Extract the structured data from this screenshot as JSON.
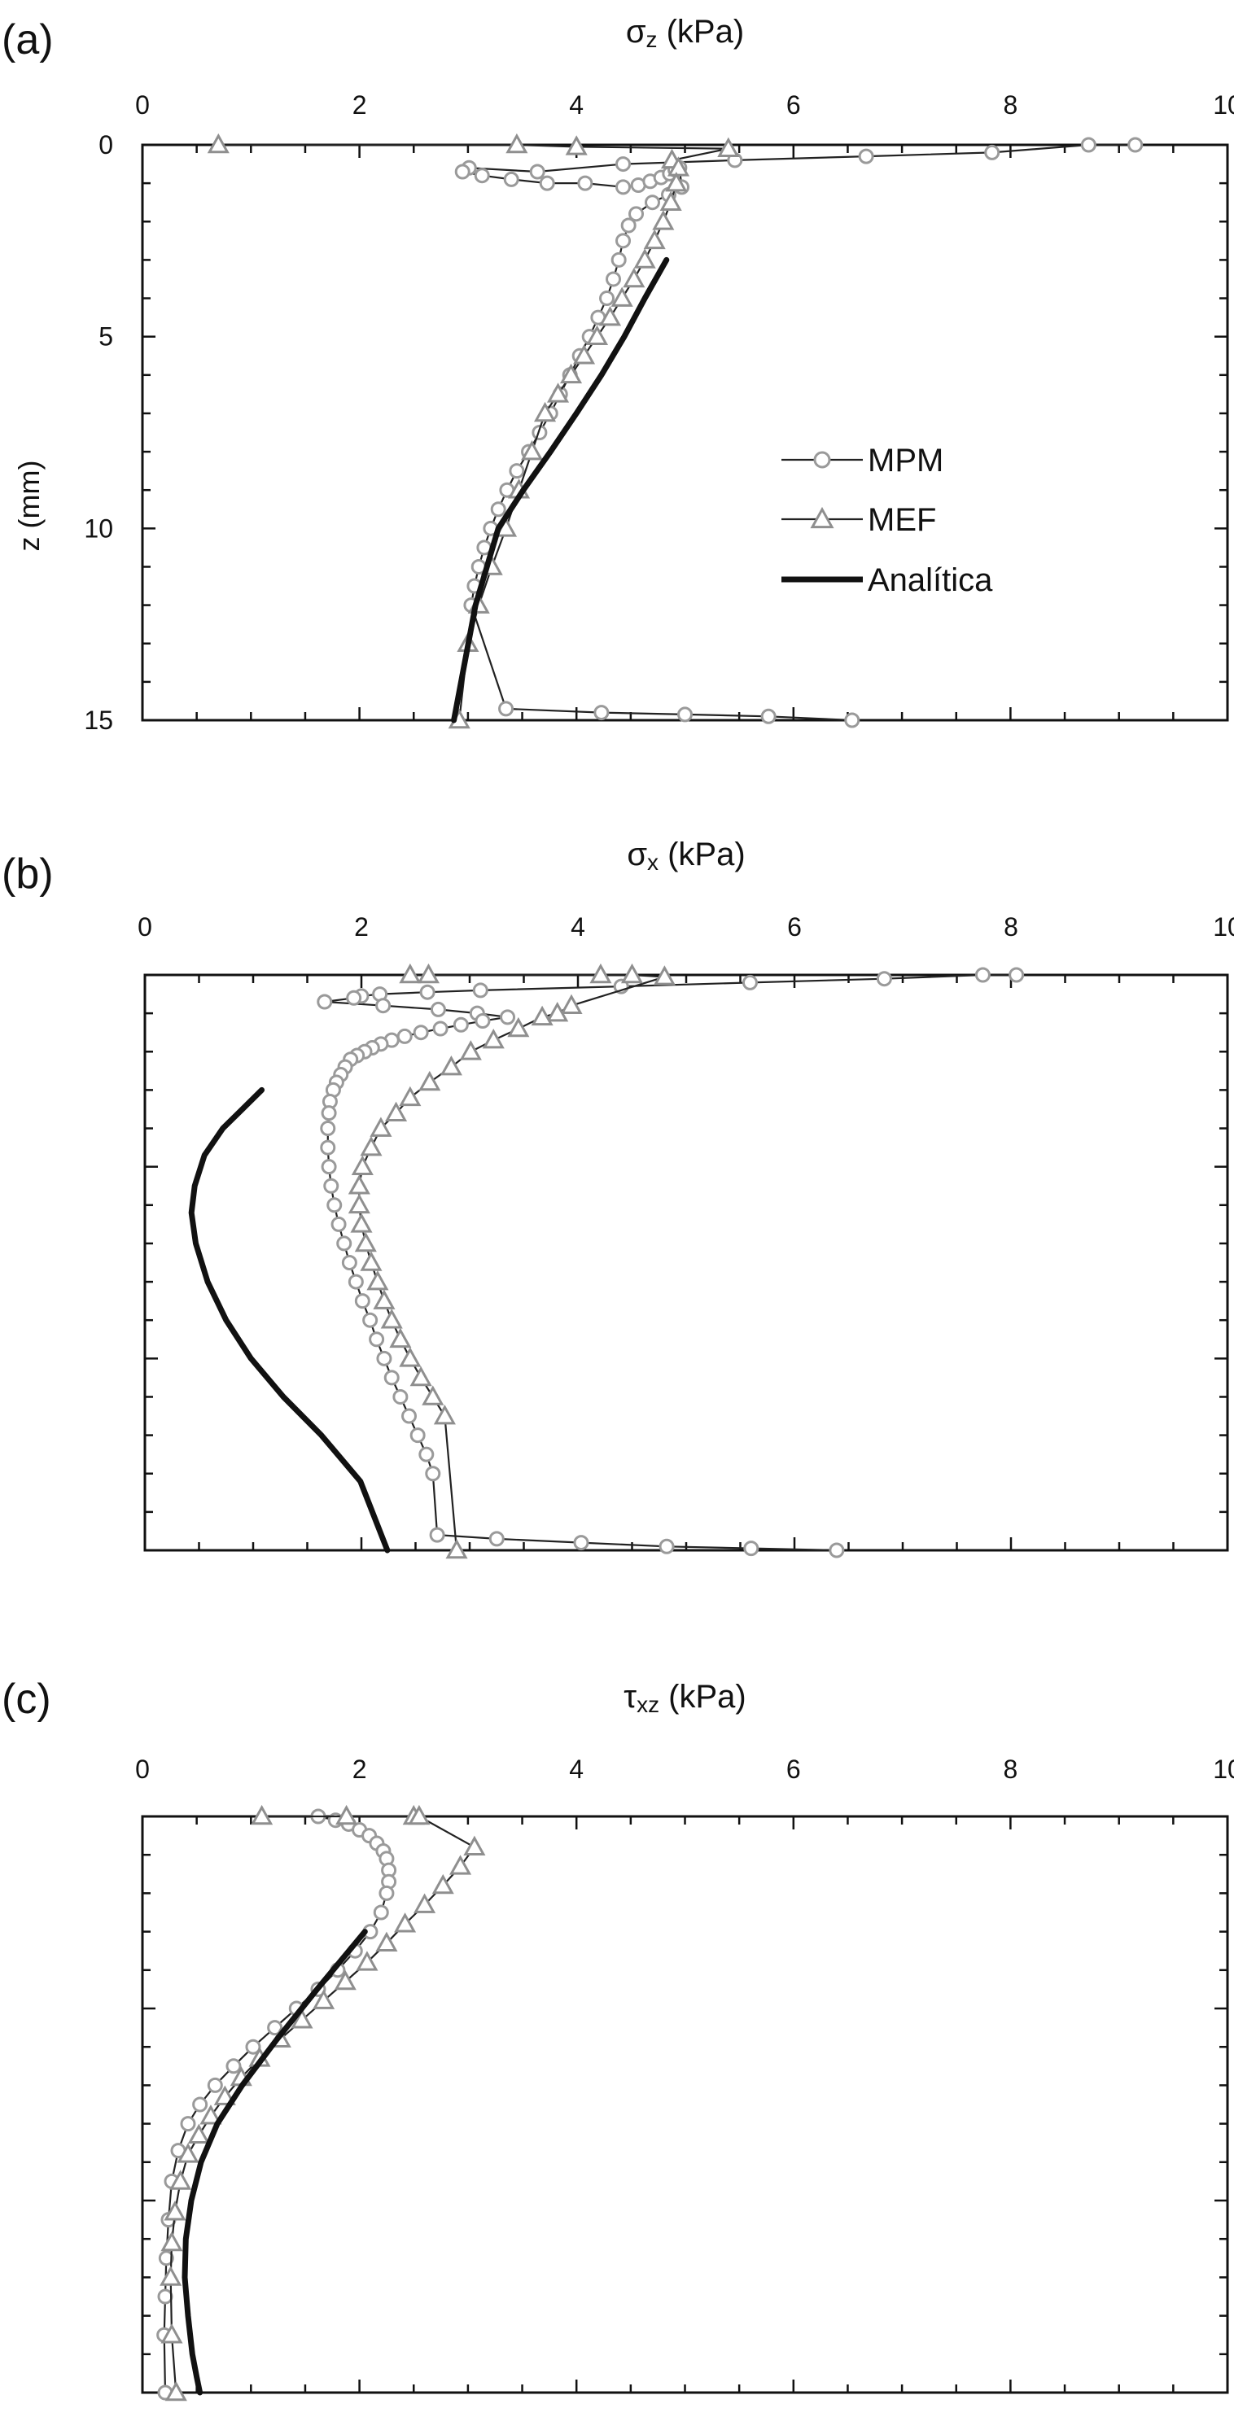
{
  "figure": {
    "series_legend": [
      {
        "name": "MPM",
        "marker": "circle"
      },
      {
        "name": "MEF",
        "marker": "triangle"
      },
      {
        "name": "Analítica",
        "marker": "none"
      }
    ],
    "colors": {
      "mpm": "#9a9a9a",
      "mef": "#8f8f8f",
      "analitica": "#111111",
      "axis": "#111111"
    }
  },
  "chart_data": [
    {
      "type": "line",
      "panel_label": "(a)",
      "xlabel_symbol": "σ",
      "xlabel_sub": "z",
      "xlabel_unit": " (kPa)",
      "ylabel": "z (mm)",
      "xlim": [
        0,
        10
      ],
      "ylim": [
        0,
        15
      ],
      "x_ticks": [
        "0",
        "2",
        "4",
        "6",
        "8",
        "10"
      ],
      "y_ticks": [
        "0",
        "5",
        "10",
        "15"
      ],
      "grid": false,
      "legend": "right",
      "series": [
        {
          "name": "MPM",
          "marker": "circle",
          "x": [
            9.15,
            8.72,
            7.83,
            6.67,
            5.46,
            4.43,
            3.64,
            3.01,
            2.95,
            3.13,
            3.4,
            3.73,
            4.08,
            4.43,
            4.57,
            4.68,
            4.78,
            4.86,
            4.91,
            4.95,
            4.97,
            4.85,
            4.7,
            4.55,
            4.48,
            4.43,
            4.39,
            4.34,
            4.28,
            4.2,
            4.12,
            4.03,
            3.94,
            3.85,
            3.76,
            3.66,
            3.56,
            3.45,
            3.36,
            3.28,
            3.21,
            3.15,
            3.1,
            3.06,
            3.03,
            3.35,
            4.23,
            5.0,
            5.77,
            6.54
          ],
          "y": [
            0.0,
            0.0,
            0.2,
            0.3,
            0.4,
            0.5,
            0.7,
            0.6,
            0.7,
            0.8,
            0.9,
            1.0,
            1.0,
            1.1,
            1.05,
            0.95,
            0.85,
            0.75,
            0.65,
            0.6,
            1.1,
            1.3,
            1.5,
            1.8,
            2.1,
            2.5,
            3.0,
            3.5,
            4.0,
            4.5,
            5.0,
            5.5,
            6.0,
            6.5,
            7.0,
            7.5,
            8.0,
            8.5,
            9.0,
            9.5,
            10.0,
            10.5,
            11.0,
            11.5,
            12.0,
            14.7,
            14.8,
            14.85,
            14.9,
            15.0
          ]
        },
        {
          "name": "MEF",
          "marker": "triangle",
          "x": [
            0.7,
            3.45,
            4.0,
            5.4,
            4.88,
            4.94,
            4.92,
            4.87,
            4.8,
            4.72,
            4.63,
            4.53,
            4.42,
            4.31,
            4.19,
            4.07,
            3.95,
            3.83,
            3.71,
            3.59,
            3.47,
            3.35,
            3.22,
            3.1,
            3.0,
            2.92
          ],
          "y": [
            0.0,
            0.0,
            0.05,
            0.1,
            0.4,
            0.6,
            1.0,
            1.5,
            2.0,
            2.5,
            3.0,
            3.5,
            4.0,
            4.5,
            5.0,
            5.5,
            6.0,
            6.5,
            7.0,
            8.0,
            9.0,
            10.0,
            11.0,
            12.0,
            13.0,
            15.0
          ]
        },
        {
          "name": "Analítica",
          "marker": "none",
          "x": [
            4.83,
            4.63,
            4.44,
            4.23,
            4.0,
            3.76,
            3.51,
            3.28,
            3.07,
            2.87
          ],
          "y": [
            3.0,
            4.0,
            5.0,
            6.0,
            7.0,
            8.0,
            9.0,
            10.0,
            12.0,
            15.0
          ]
        }
      ]
    },
    {
      "type": "line",
      "panel_label": "(b)",
      "xlabel_symbol": "σ",
      "xlabel_sub": "x",
      "xlabel_unit": " (kPa)",
      "ylabel": "",
      "xlim": [
        0,
        10
      ],
      "ylim": [
        0,
        15
      ],
      "x_ticks": [
        "0",
        "2",
        "4",
        "6",
        "8",
        "10"
      ],
      "y_ticks": [],
      "grid": false,
      "legend": "none",
      "series": [
        {
          "name": "MPM",
          "marker": "circle",
          "x": [
            8.05,
            7.74,
            6.83,
            5.59,
            4.4,
            3.1,
            2.61,
            2.17,
            2.0,
            1.93,
            1.66,
            2.2,
            2.71,
            3.07,
            3.35,
            3.12,
            2.92,
            2.73,
            2.55,
            2.4,
            2.28,
            2.18,
            2.1,
            2.03,
            1.96,
            1.9,
            1.85,
            1.81,
            1.77,
            1.74,
            1.71,
            1.7,
            1.69,
            1.69,
            1.7,
            1.72,
            1.75,
            1.79,
            1.84,
            1.89,
            1.95,
            2.01,
            2.08,
            2.14,
            2.21,
            2.28,
            2.36,
            2.44,
            2.52,
            2.6,
            2.66,
            2.7,
            3.25,
            4.03,
            4.82,
            5.6,
            6.39
          ],
          "y": [
            0.0,
            0.0,
            0.1,
            0.2,
            0.3,
            0.4,
            0.45,
            0.5,
            0.55,
            0.6,
            0.7,
            0.8,
            0.9,
            1.0,
            1.1,
            1.2,
            1.3,
            1.4,
            1.5,
            1.6,
            1.7,
            1.8,
            1.9,
            2.0,
            2.1,
            2.2,
            2.4,
            2.6,
            2.8,
            3.0,
            3.3,
            3.6,
            4.0,
            4.5,
            5.0,
            5.5,
            6.0,
            6.5,
            7.0,
            7.5,
            8.0,
            8.5,
            9.0,
            9.5,
            10.0,
            10.5,
            11.0,
            11.5,
            12.0,
            12.5,
            13.0,
            14.6,
            14.7,
            14.8,
            14.9,
            14.95,
            15.0
          ]
        },
        {
          "name": "MEF",
          "marker": "triangle",
          "x": [
            2.45,
            2.62,
            4.21,
            4.5,
            4.8,
            3.94,
            3.81,
            3.67,
            3.45,
            3.22,
            3.01,
            2.83,
            2.63,
            2.45,
            2.32,
            2.18,
            2.09,
            2.01,
            1.98,
            1.98,
            2.0,
            2.04,
            2.09,
            2.15,
            2.21,
            2.28,
            2.36,
            2.45,
            2.55,
            2.66,
            2.77,
            2.88
          ],
          "y": [
            0.0,
            0.0,
            0.0,
            0.0,
            0.05,
            0.8,
            1.0,
            1.1,
            1.4,
            1.7,
            2.0,
            2.4,
            2.8,
            3.2,
            3.6,
            4.0,
            4.5,
            5.0,
            5.5,
            6.0,
            6.5,
            7.0,
            7.5,
            8.0,
            8.5,
            9.0,
            9.5,
            10.0,
            10.5,
            11.0,
            11.5,
            15.0
          ]
        },
        {
          "name": "Analítica",
          "marker": "none",
          "x": [
            1.08,
            0.9,
            0.72,
            0.55,
            0.46,
            0.43,
            0.47,
            0.58,
            0.75,
            0.98,
            1.28,
            1.63,
            1.99,
            2.24
          ],
          "y": [
            3.0,
            3.5,
            4.0,
            4.7,
            5.5,
            6.2,
            7.0,
            8.0,
            9.0,
            10.0,
            11.0,
            12.0,
            13.2,
            15.0
          ]
        }
      ]
    },
    {
      "type": "line",
      "panel_label": "(c)",
      "xlabel_symbol": "τ",
      "xlabel_sub": "xz",
      "xlabel_unit": " (kPa)",
      "ylabel": "",
      "xlim": [
        0,
        10
      ],
      "ylim": [
        0,
        15
      ],
      "x_ticks": [
        "0",
        "2",
        "4",
        "6",
        "8",
        "10"
      ],
      "y_ticks": [],
      "grid": false,
      "legend": "none",
      "series": [
        {
          "name": "MPM",
          "marker": "circle",
          "x": [
            1.62,
            1.78,
            1.9,
            2.0,
            2.09,
            2.16,
            2.22,
            2.25,
            2.27,
            2.27,
            2.25,
            2.2,
            2.1,
            1.96,
            1.8,
            1.62,
            1.42,
            1.22,
            1.02,
            0.84,
            0.67,
            0.53,
            0.42,
            0.33,
            0.27,
            0.24,
            0.22,
            0.21,
            0.2,
            0.21
          ],
          "y": [
            0.0,
            0.1,
            0.2,
            0.35,
            0.5,
            0.7,
            0.9,
            1.1,
            1.4,
            1.7,
            2.0,
            2.5,
            3.0,
            3.5,
            4.0,
            4.5,
            5.0,
            5.5,
            6.0,
            6.5,
            7.0,
            7.5,
            8.0,
            8.7,
            9.5,
            10.5,
            11.5,
            12.5,
            13.5,
            15.0
          ]
        },
        {
          "name": "MEF",
          "marker": "triangle",
          "x": [
            1.1,
            1.88,
            2.5,
            2.55,
            3.06,
            2.93,
            2.77,
            2.6,
            2.42,
            2.25,
            2.07,
            1.87,
            1.67,
            1.47,
            1.27,
            1.08,
            0.91,
            0.76,
            0.63,
            0.52,
            0.42,
            0.35,
            0.3,
            0.27,
            0.26,
            0.27,
            0.31
          ],
          "y": [
            0.0,
            0.0,
            0.0,
            0.0,
            0.8,
            1.3,
            1.8,
            2.3,
            2.8,
            3.3,
            3.8,
            4.3,
            4.8,
            5.3,
            5.8,
            6.3,
            6.8,
            7.3,
            7.8,
            8.3,
            8.8,
            9.5,
            10.3,
            11.1,
            12.0,
            13.5,
            15.0
          ]
        },
        {
          "name": "Analítica",
          "marker": "none",
          "x": [
            2.05,
            1.61,
            1.24,
            0.92,
            0.69,
            0.54,
            0.45,
            0.4,
            0.39,
            0.42,
            0.46,
            0.5,
            0.53
          ],
          "y": [
            3.0,
            4.5,
            5.8,
            7.0,
            8.0,
            9.0,
            10.0,
            11.0,
            12.0,
            13.0,
            14.0,
            14.6,
            15.0
          ]
        }
      ]
    }
  ]
}
